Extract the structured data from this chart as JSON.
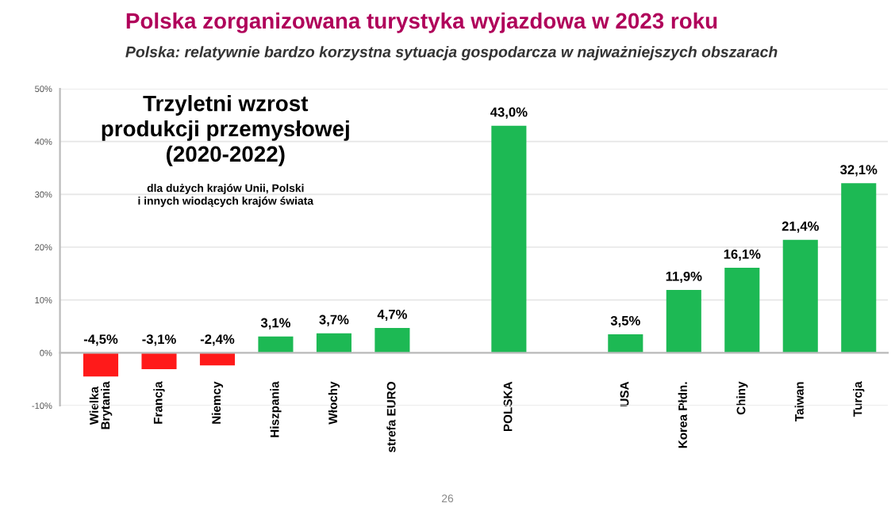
{
  "chart_data": {
    "type": "bar",
    "title": "Polska zorganizowana turystyka wyjazdowa w 2023 roku",
    "subtitle": "Polska: relatywnie bardzo korzystna sytuacja gospodarcza w najważniejszych obszarach",
    "categories": [
      "Wielka\nBrytania",
      "Francja",
      "Niemcy",
      "Hiszpania",
      "Włochy",
      "strefa EURO",
      null,
      "POLSKA",
      null,
      "USA",
      "Korea Płdn.",
      "Chiny",
      "Taiwan",
      "Turcja"
    ],
    "values": [
      -4.5,
      -3.1,
      -2.4,
      3.1,
      3.7,
      4.7,
      null,
      43.0,
      null,
      3.5,
      11.9,
      16.1,
      21.4,
      32.1
    ],
    "colors": [
      "#ff1a1a",
      "#ff1a1a",
      "#ff1a1a",
      "#1db954",
      "#1db954",
      "#1db954",
      "#1db954",
      "#1db954",
      "#1db954",
      "#1db954",
      "#1db954",
      "#1db954",
      "#1db954",
      "#1db954"
    ],
    "value_labels": [
      "-4,5%",
      "-3,1%",
      "-2,4%",
      "3,1%",
      "3,7%",
      "4,7%",
      null,
      "43,0%",
      null,
      "3,5%",
      "11,9%",
      "16,1%",
      "21,4%",
      "32,1%"
    ],
    "ylim": [
      -10,
      50
    ],
    "yticks": [
      {
        "value": -10,
        "label": "-10%"
      },
      {
        "value": 0,
        "label": "0%"
      },
      {
        "value": 10,
        "label": "10%"
      },
      {
        "value": 20,
        "label": "20%"
      },
      {
        "value": 30,
        "label": "30%"
      },
      {
        "value": 40,
        "label": "40%"
      },
      {
        "value": 50,
        "label": "50%"
      }
    ],
    "grid": "y",
    "annotations": [
      "Trzyletni wzrost\nprodukcji przemysłowej\n(2020-2022)",
      "dla dużych krajów Unii, Polski\ni innych wiodących krajów świata",
      "26"
    ]
  }
}
